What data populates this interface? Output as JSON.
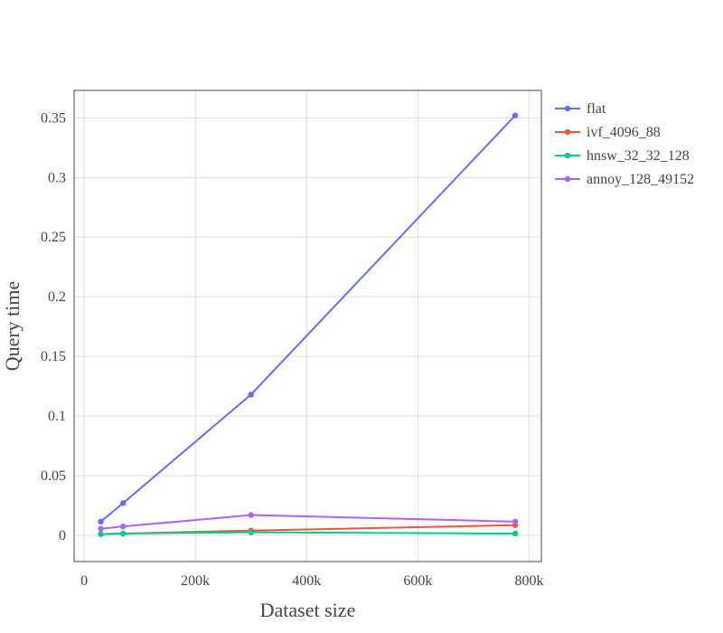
{
  "chart_data": {
    "type": "line",
    "title": "",
    "xlabel": "Dataset size",
    "ylabel": "Query time",
    "x": [
      30000,
      70000,
      300000,
      775000
    ],
    "xlim": [
      -18000,
      822000
    ],
    "ylim": [
      -0.022,
      0.373
    ],
    "x_ticks": [
      0,
      200000,
      400000,
      600000,
      800000
    ],
    "x_tick_labels": [
      "0",
      "200k",
      "400k",
      "600k",
      "800k"
    ],
    "y_ticks": [
      0,
      0.05,
      0.1,
      0.15,
      0.2,
      0.25,
      0.3,
      0.35
    ],
    "y_tick_labels": [
      "0",
      "0.05",
      "0.1",
      "0.15",
      "0.2",
      "0.25",
      "0.3",
      "0.35"
    ],
    "grid": true,
    "legend_position": "top-right outside",
    "series": [
      {
        "name": "flat",
        "color": "#636efa",
        "values": [
          0.0115,
          0.027,
          0.118,
          0.352
        ]
      },
      {
        "name": "ivf_4096_88",
        "color": "#ef553b",
        "values": [
          0.001,
          0.0015,
          0.004,
          0.0085
        ]
      },
      {
        "name": "hnsw_32_32_128",
        "color": "#00cc96",
        "values": [
          0.001,
          0.0015,
          0.0025,
          0.0015
        ]
      },
      {
        "name": "annoy_128_49152",
        "color": "#ab63fa",
        "values": [
          0.0055,
          0.0075,
          0.017,
          0.0115
        ]
      }
    ]
  }
}
